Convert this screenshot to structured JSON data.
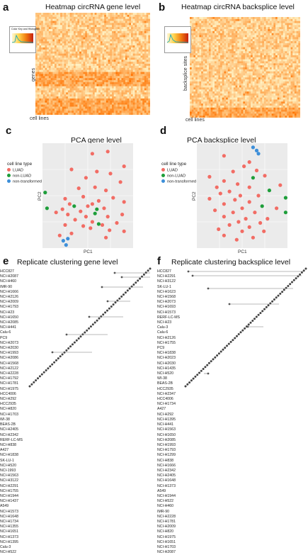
{
  "panels": {
    "a": {
      "letter": "a",
      "title": "Heatmap circRNA gene level",
      "xlabel": "cell lines",
      "ylabel": "genes"
    },
    "b": {
      "letter": "b",
      "title": "Heatmap circRNA backsplice level",
      "xlabel": "cell lines",
      "ylabel": "backsplice sites"
    },
    "c": {
      "letter": "c",
      "title": "PCA gene level",
      "xlabel": "PC1",
      "ylabel": "PC2"
    },
    "d": {
      "letter": "d",
      "title": "PCA backsplice level",
      "xlabel": "PC1",
      "ylabel": "PC2"
    },
    "e": {
      "letter": "e",
      "title": "Replicate clustering  gene level"
    },
    "f": {
      "letter": "f",
      "title": "Replicate clustering backsplice level"
    }
  },
  "colorkey": {
    "title": "Color Key and Histogram"
  },
  "legend_c": {
    "title": "cell line type",
    "items": [
      {
        "label": "LUAD",
        "color": "#f26c64"
      },
      {
        "label": "non-LUAD",
        "color": "#1e9e3a"
      },
      {
        "label": "non-transformed",
        "color": "#3d8fd9"
      }
    ]
  },
  "legend_d": {
    "title": "cell line type",
    "items": [
      {
        "label": "LUAD",
        "color": "#f26c64"
      },
      {
        "label": "non-LUAD",
        "color": "#1e9e3a"
      },
      {
        "label": "non-transformed",
        "color": "#3d8fd9"
      }
    ]
  },
  "colors": {
    "luad": "#f26c64",
    "nonluad": "#1e9e3a",
    "nontrans": "#3d8fd9",
    "panel_bg": "#ebebeb",
    "heat_low": "#fff4c8",
    "heat_high": "#e8820a"
  },
  "labels_e": [
    "HCC827",
    "NCI-H2087",
    "NCI-H460",
    "IMR-90",
    "NCI-H1666",
    "NCI-H2126",
    "NCI-H2009",
    "NCI-H1793",
    "NCI-H23",
    "NCI-H1650",
    "NCI-H2085",
    "NCI-H441",
    "Calu-6",
    "PC9",
    "NCI-H2073",
    "NCI-H2030",
    "NCI-H1993",
    "NCI-H2086",
    "NCI-H1568",
    "NCI-H2122",
    "NCI-H2228",
    "NCI-H1792",
    "NCI-H1781",
    "NCI-H1975",
    "HCC4006",
    "NCI-H292",
    "HCC2935",
    "NCI-H820",
    "NCI-H1703",
    "WI-38",
    "BEAS-2B",
    "NCI-H2405",
    "NCI-H2342",
    "RERF-LC-MS",
    "NCI-H838",
    "A427",
    "NCI-H1838",
    "SK-LU-1",
    "NCI-H520",
    "NCI-1993",
    "NCI-H1563",
    "NCI-H3122",
    "NCI-H2291",
    "NCI-H1755",
    "NCI-H1944",
    "NCI-H1437",
    "A549",
    "NCI-H1573",
    "NCI-H1648",
    "NCI-H1734",
    "NCI-H1355",
    "NCI-H1651",
    "NCI-H1373",
    "NCI-H1395",
    "Calu-3",
    "NCI-H522"
  ],
  "labels_f": [
    "HCC827",
    "NCI-H2291",
    "NCI-H3122",
    "SK-LU-1",
    "NCI-H1623",
    "NCI-H1568",
    "NCI-H2073",
    "NCI-H1693",
    "NCI-H1573",
    "RERF-LC-MS",
    "NCI-H23",
    "Calu-3",
    "Calu-6",
    "NCI-H2126",
    "NCI-H1755",
    "PC9",
    "NCI-H1838",
    "NCI-H2023",
    "NCI-H2030",
    "NCI-H1435",
    "NCI-H520",
    "WI-38",
    "BEAS-2B",
    "HCC2935",
    "NCI-H2347",
    "HCC4006",
    "NCI-H1734",
    "A427",
    "NCI-H292",
    "NCI-H1395",
    "NCI-H441",
    "NCI-H1563",
    "NCI-H1650",
    "NCI-H2085",
    "NCI-H1993",
    "NCI-H1793",
    "NCI-H1299",
    "NCI-H838",
    "NCI-H1666",
    "NCI-H2342",
    "NCI-H2405",
    "NCI-H1648",
    "NCI-H1373",
    "A549",
    "NCI-H1944",
    "NCI-H522",
    "NCI-H460",
    "IMR-90",
    "NCI-H2228",
    "NCI-H1781",
    "NCI-H2009",
    "NCI-H820",
    "NCI-H1975",
    "NCI-H1651",
    "NCI-H1703",
    "NCI-H2087"
  ]
}
